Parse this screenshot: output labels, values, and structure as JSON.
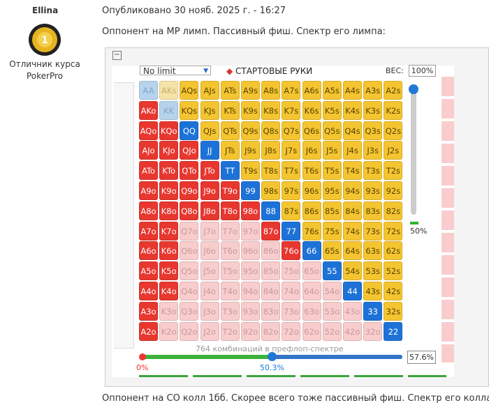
{
  "post": {
    "author": "Ellina",
    "rank": "Отличник курса PokerPro",
    "published": "Опубликовано 30 нояб. 2025 г. - 16:27",
    "text_before": "Оппонент на MP лимп. Пассивный фиш. Спектр его лимпа:",
    "text_after": "Оппонент на CO колл 1бб. Скорее всего тоже пассивный фиш. Спектр его колла:"
  },
  "widget": {
    "game": "No limit",
    "section": "СТАРТОВЫЕ РУКИ",
    "weight_label": "ВЕС:",
    "weight": "100%",
    "slider_value": "50%",
    "combos": "764 комбинаций в префлоп-спектре",
    "range_min": "0%",
    "range_mid": "50.3%",
    "range_total": "57.6%",
    "grid": [
      [
        {
          "label": "AA",
          "color": "#b7d3ec"
        },
        {
          "label": "AKs",
          "color": "#f6e3a8"
        },
        {
          "label": "AQs",
          "color": "#f4c531"
        },
        {
          "label": "AJs",
          "color": "#f4c531"
        },
        {
          "label": "ATs",
          "color": "#f4c531"
        },
        {
          "label": "A9s",
          "color": "#f4c531"
        },
        {
          "label": "A8s",
          "color": "#f4c531"
        },
        {
          "label": "A7s",
          "color": "#f4c531"
        },
        {
          "label": "A6s",
          "color": "#f4c531"
        },
        {
          "label": "A5s",
          "color": "#f4c531"
        },
        {
          "label": "A4s",
          "color": "#f4c531"
        },
        {
          "label": "A3s",
          "color": "#f4c531"
        },
        {
          "label": "A2s",
          "color": "#f4c531"
        }
      ],
      [
        {
          "label": "AKo",
          "color": "#e8372f"
        },
        {
          "label": "KK",
          "color": "#b7d3ec"
        },
        {
          "label": "KQs",
          "color": "#f4c531"
        },
        {
          "label": "KJs",
          "color": "#f4c531"
        },
        {
          "label": "KTs",
          "color": "#f4c531"
        },
        {
          "label": "K9s",
          "color": "#f4c531"
        },
        {
          "label": "K8s",
          "color": "#f4c531"
        },
        {
          "label": "K7s",
          "color": "#f4c531"
        },
        {
          "label": "K6s",
          "color": "#f4c531"
        },
        {
          "label": "K5s",
          "color": "#f4c531"
        },
        {
          "label": "K4s",
          "color": "#f4c531"
        },
        {
          "label": "K3s",
          "color": "#f4c531"
        },
        {
          "label": "K2s",
          "color": "#f4c531"
        }
      ],
      [
        {
          "label": "AQo",
          "color": "#e8372f"
        },
        {
          "label": "KQo",
          "color": "#e8372f"
        },
        {
          "label": "QQ",
          "color": "#1d72d8"
        },
        {
          "label": "QJs",
          "color": "#f4c531"
        },
        {
          "label": "QTs",
          "color": "#f4c531"
        },
        {
          "label": "Q9s",
          "color": "#f4c531"
        },
        {
          "label": "Q8s",
          "color": "#f4c531"
        },
        {
          "label": "Q7s",
          "color": "#f4c531"
        },
        {
          "label": "Q6s",
          "color": "#f4c531"
        },
        {
          "label": "Q5s",
          "color": "#f4c531"
        },
        {
          "label": "Q4s",
          "color": "#f4c531"
        },
        {
          "label": "Q3s",
          "color": "#f4c531"
        },
        {
          "label": "Q2s",
          "color": "#f4c531"
        }
      ],
      [
        {
          "label": "AJo",
          "color": "#e8372f"
        },
        {
          "label": "KJo",
          "color": "#e8372f"
        },
        {
          "label": "QJo",
          "color": "#e8372f"
        },
        {
          "label": "JJ",
          "color": "#1d72d8"
        },
        {
          "label": "JTs",
          "color": "#f4c531"
        },
        {
          "label": "J9s",
          "color": "#f4c531"
        },
        {
          "label": "J8s",
          "color": "#f4c531"
        },
        {
          "label": "J7s",
          "color": "#f4c531"
        },
        {
          "label": "J6s",
          "color": "#f4c531"
        },
        {
          "label": "J5s",
          "color": "#f4c531"
        },
        {
          "label": "J4s",
          "color": "#f4c531"
        },
        {
          "label": "J3s",
          "color": "#f4c531"
        },
        {
          "label": "J2s",
          "color": "#f4c531"
        }
      ],
      [
        {
          "label": "ATo",
          "color": "#e8372f"
        },
        {
          "label": "KTo",
          "color": "#e8372f"
        },
        {
          "label": "QTo",
          "color": "#e8372f"
        },
        {
          "label": "JTo",
          "color": "#e8372f"
        },
        {
          "label": "TT",
          "color": "#1d72d8"
        },
        {
          "label": "T9s",
          "color": "#f4c531"
        },
        {
          "label": "T8s",
          "color": "#f4c531"
        },
        {
          "label": "T7s",
          "color": "#f4c531"
        },
        {
          "label": "T6s",
          "color": "#f4c531"
        },
        {
          "label": "T5s",
          "color": "#f4c531"
        },
        {
          "label": "T4s",
          "color": "#f4c531"
        },
        {
          "label": "T3s",
          "color": "#f4c531"
        },
        {
          "label": "T2s",
          "color": "#f4c531"
        }
      ],
      [
        {
          "label": "A9o",
          "color": "#e8372f"
        },
        {
          "label": "K9o",
          "color": "#e8372f"
        },
        {
          "label": "Q9o",
          "color": "#e8372f"
        },
        {
          "label": "J9o",
          "color": "#e8372f"
        },
        {
          "label": "T9o",
          "color": "#e8372f"
        },
        {
          "label": "99",
          "color": "#1d72d8"
        },
        {
          "label": "98s",
          "color": "#f4c531"
        },
        {
          "label": "97s",
          "color": "#f4c531"
        },
        {
          "label": "96s",
          "color": "#f4c531"
        },
        {
          "label": "95s",
          "color": "#f4c531"
        },
        {
          "label": "94s",
          "color": "#f4c531"
        },
        {
          "label": "93s",
          "color": "#f4c531"
        },
        {
          "label": "92s",
          "color": "#f4c531"
        }
      ],
      [
        {
          "label": "A8o",
          "color": "#e8372f"
        },
        {
          "label": "K8o",
          "color": "#e8372f"
        },
        {
          "label": "Q8o",
          "color": "#e8372f"
        },
        {
          "label": "J8o",
          "color": "#e8372f"
        },
        {
          "label": "T8o",
          "color": "#e8372f"
        },
        {
          "label": "98o",
          "color": "#e8372f"
        },
        {
          "label": "88",
          "color": "#1d72d8"
        },
        {
          "label": "87s",
          "color": "#f4c531"
        },
        {
          "label": "86s",
          "color": "#f4c531"
        },
        {
          "label": "85s",
          "color": "#f4c531"
        },
        {
          "label": "84s",
          "color": "#f4c531"
        },
        {
          "label": "83s",
          "color": "#f4c531"
        },
        {
          "label": "82s",
          "color": "#f4c531"
        }
      ],
      [
        {
          "label": "A7o",
          "color": "#e8372f"
        },
        {
          "label": "K7o",
          "color": "#e8372f"
        },
        {
          "label": "Q7o",
          "color": "#f9cdcd"
        },
        {
          "label": "J7o",
          "color": "#f9cdcd"
        },
        {
          "label": "T7o",
          "color": "#f9cdcd"
        },
        {
          "label": "97o",
          "color": "#f9cdcd"
        },
        {
          "label": "87o",
          "color": "#e8372f"
        },
        {
          "label": "77",
          "color": "#1d72d8"
        },
        {
          "label": "76s",
          "color": "#f4c531"
        },
        {
          "label": "75s",
          "color": "#f4c531"
        },
        {
          "label": "74s",
          "color": "#f4c531"
        },
        {
          "label": "73s",
          "color": "#f4c531"
        },
        {
          "label": "72s",
          "color": "#f4c531"
        }
      ],
      [
        {
          "label": "A6o",
          "color": "#e8372f"
        },
        {
          "label": "K6o",
          "color": "#e8372f"
        },
        {
          "label": "Q6o",
          "color": "#f9cdcd"
        },
        {
          "label": "J6o",
          "color": "#f9cdcd"
        },
        {
          "label": "T6o",
          "color": "#f9cdcd"
        },
        {
          "label": "96o",
          "color": "#f9cdcd"
        },
        {
          "label": "86o",
          "color": "#f9cdcd"
        },
        {
          "label": "76o",
          "color": "#e8372f"
        },
        {
          "label": "66",
          "color": "#1d72d8"
        },
        {
          "label": "65s",
          "color": "#f4c531"
        },
        {
          "label": "64s",
          "color": "#f4c531"
        },
        {
          "label": "63s",
          "color": "#f4c531"
        },
        {
          "label": "62s",
          "color": "#f4c531"
        }
      ],
      [
        {
          "label": "A5o",
          "color": "#e8372f"
        },
        {
          "label": "K5o",
          "color": "#e8372f"
        },
        {
          "label": "Q5o",
          "color": "#f9cdcd"
        },
        {
          "label": "J5o",
          "color": "#f9cdcd"
        },
        {
          "label": "T5o",
          "color": "#f9cdcd"
        },
        {
          "label": "95o",
          "color": "#f9cdcd"
        },
        {
          "label": "85o",
          "color": "#f9cdcd"
        },
        {
          "label": "75o",
          "color": "#f9cdcd"
        },
        {
          "label": "65o",
          "color": "#f9cdcd"
        },
        {
          "label": "55",
          "color": "#1d72d8"
        },
        {
          "label": "54s",
          "color": "#f4c531"
        },
        {
          "label": "53s",
          "color": "#f4c531"
        },
        {
          "label": "52s",
          "color": "#f4c531"
        }
      ],
      [
        {
          "label": "A4o",
          "color": "#e8372f"
        },
        {
          "label": "K4o",
          "color": "#e8372f"
        },
        {
          "label": "Q4o",
          "color": "#f9cdcd"
        },
        {
          "label": "J4o",
          "color": "#f9cdcd"
        },
        {
          "label": "T4o",
          "color": "#f9cdcd"
        },
        {
          "label": "94o",
          "color": "#f9cdcd"
        },
        {
          "label": "84o",
          "color": "#f9cdcd"
        },
        {
          "label": "74o",
          "color": "#f9cdcd"
        },
        {
          "label": "64o",
          "color": "#f9cdcd"
        },
        {
          "label": "54o",
          "color": "#f9cdcd"
        },
        {
          "label": "44",
          "color": "#1d72d8"
        },
        {
          "label": "43s",
          "color": "#f4c531"
        },
        {
          "label": "42s",
          "color": "#f4c531"
        }
      ],
      [
        {
          "label": "A3o",
          "color": "#e8372f"
        },
        {
          "label": "K3o",
          "color": "#f9cdcd"
        },
        {
          "label": "Q3o",
          "color": "#f9cdcd"
        },
        {
          "label": "J3o",
          "color": "#f9cdcd"
        },
        {
          "label": "T3o",
          "color": "#f9cdcd"
        },
        {
          "label": "93o",
          "color": "#f9cdcd"
        },
        {
          "label": "83o",
          "color": "#f9cdcd"
        },
        {
          "label": "73o",
          "color": "#f9cdcd"
        },
        {
          "label": "63o",
          "color": "#f9cdcd"
        },
        {
          "label": "53o",
          "color": "#f9cdcd"
        },
        {
          "label": "43o",
          "color": "#f9cdcd"
        },
        {
          "label": "33",
          "color": "#1d72d8"
        },
        {
          "label": "32s",
          "color": "#f4c531"
        }
      ],
      [
        {
          "label": "A2o",
          "color": "#e8372f"
        },
        {
          "label": "K2o",
          "color": "#f9cdcd"
        },
        {
          "label": "Q2o",
          "color": "#f9cdcd"
        },
        {
          "label": "J2o",
          "color": "#f9cdcd"
        },
        {
          "label": "T2o",
          "color": "#f9cdcd"
        },
        {
          "label": "92o",
          "color": "#f9cdcd"
        },
        {
          "label": "82o",
          "color": "#f9cdcd"
        },
        {
          "label": "72o",
          "color": "#f9cdcd"
        },
        {
          "label": "62o",
          "color": "#f9cdcd"
        },
        {
          "label": "52o",
          "color": "#f9cdcd"
        },
        {
          "label": "42o",
          "color": "#f9cdcd"
        },
        {
          "label": "32o",
          "color": "#f9cdcd"
        },
        {
          "label": "22",
          "color": "#1d72d8"
        }
      ]
    ]
  }
}
